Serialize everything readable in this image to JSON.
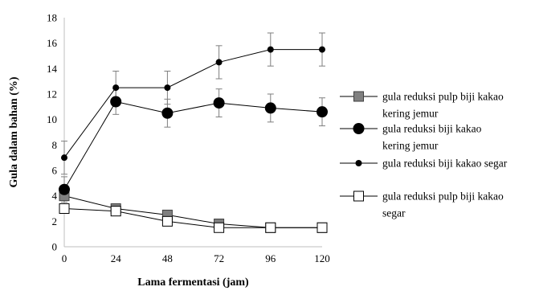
{
  "chart_data": {
    "type": "line",
    "xlabel": "Lama fermentasi (jam)",
    "ylabel": "Gula dalam bahan (%)",
    "x": [
      0,
      24,
      48,
      72,
      96,
      120
    ],
    "xlim": [
      0,
      120
    ],
    "ylim": [
      0,
      18
    ],
    "yticks": [
      0,
      2,
      4,
      6,
      8,
      10,
      12,
      14,
      16,
      18
    ],
    "grid": false,
    "legend_position": "right",
    "series": [
      {
        "name": "gula reduksi pulp biji kakao kering jemur",
        "legend_lines": [
          "gula reduksi pulp biji kakao",
          "kering jemur"
        ],
        "marker": "square-filled",
        "values": [
          4.0,
          3.0,
          2.5,
          1.8,
          1.5,
          1.5
        ],
        "errors": [
          0.3,
          0.3,
          0.3,
          0.3,
          0.2,
          0.2
        ]
      },
      {
        "name": "gula reduksi biji kakao kering jemur",
        "legend_lines": [
          "gula reduksi biji kakao",
          "kering jemur"
        ],
        "marker": "circle-large",
        "values": [
          4.5,
          11.4,
          10.5,
          11.3,
          10.9,
          10.6
        ],
        "errors": [
          1.0,
          1.0,
          1.1,
          1.1,
          1.1,
          1.1
        ]
      },
      {
        "name": "gula reduksi biji kakao segar",
        "legend_lines": [
          "gula reduksi biji kakao segar"
        ],
        "marker": "circle-small",
        "values": [
          7.0,
          12.5,
          12.5,
          14.5,
          15.5,
          15.5
        ],
        "errors": [
          1.3,
          1.3,
          1.3,
          1.3,
          1.3,
          1.3
        ]
      },
      {
        "name": "gula reduksi pulp biji kakao segar",
        "legend_lines": [
          "gula reduksi pulp biji kakao",
          "segar"
        ],
        "marker": "square-open",
        "values": [
          3.0,
          2.8,
          2.0,
          1.5,
          1.5,
          1.5
        ],
        "errors": [
          0.3,
          0.3,
          0.3,
          0.3,
          0.2,
          0.2
        ]
      }
    ]
  }
}
